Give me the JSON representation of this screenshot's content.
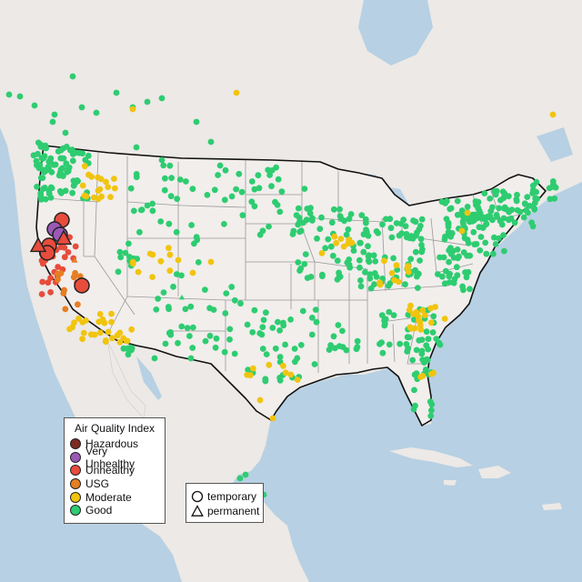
{
  "map": {
    "ocean_color": "#b7d0e3",
    "land_color": "#ece9e6",
    "us_land_color": "#f1eeec",
    "border_color": "#111111",
    "state_line_color": "#9a9a9a"
  },
  "legend": {
    "title": "Air Quality Index",
    "categories": [
      {
        "label": "Hazardous",
        "color": "#7b2b22"
      },
      {
        "label": "Very Unhealthy",
        "color": "#9b59b6"
      },
      {
        "label": "Unhealthy",
        "color": "#e74c3c"
      },
      {
        "label": "USG",
        "color": "#e67e22"
      },
      {
        "label": "Moderate",
        "color": "#f1c40f"
      },
      {
        "label": "Good",
        "color": "#2ecc71"
      }
    ]
  },
  "monitor_types": [
    {
      "label": "temporary",
      "icon": "circle-icon"
    },
    {
      "label": "permanent",
      "icon": "triangle-icon"
    }
  ]
}
